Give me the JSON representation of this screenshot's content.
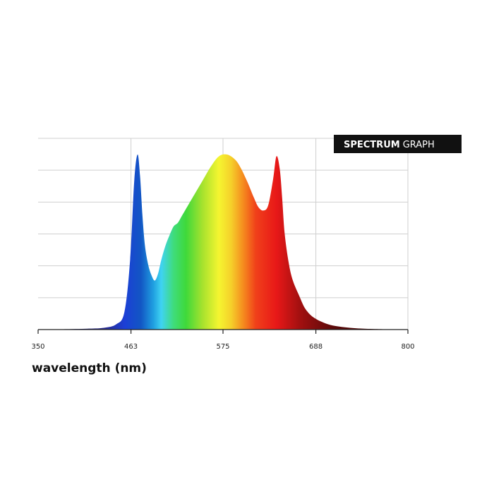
{
  "chart_data": {
    "type": "area",
    "title_bold": "SPECTRUM",
    "title_rest": "GRAPH",
    "xlabel": "wavelength (nm)",
    "ylabel": "",
    "xlim": [
      350,
      800
    ],
    "ylim": [
      0,
      100
    ],
    "x_ticks": [
      350,
      463,
      575,
      688,
      800
    ],
    "x_tick_labels": [
      "350",
      "463",
      "575",
      "688",
      "800"
    ],
    "grid": true,
    "series": [
      {
        "x": [
          350,
          380,
          410,
          430,
          445,
          455,
          462,
          467,
          471,
          474,
          477,
          480,
          484,
          488,
          492,
          496,
          500,
          505,
          510,
          515,
          520,
          525,
          530,
          540,
          550,
          560,
          570,
          580,
          590,
          597,
          605,
          612,
          618,
          624,
          630,
          636,
          640,
          644,
          647,
          650,
          655,
          660,
          668,
          675,
          685,
          700,
          715,
          735,
          760,
          800
        ],
        "y": [
          0,
          0.2,
          0.5,
          1,
          3,
          10,
          40,
          85,
          100,
          88,
          65,
          48,
          37,
          31,
          28,
          32,
          40,
          48,
          54,
          59,
          61,
          65,
          69,
          77,
          85,
          93,
          99,
          100,
          97,
          92,
          84,
          76,
          70,
          68,
          71,
          86,
          99,
          92,
          75,
          55,
          38,
          28,
          19,
          12,
          7,
          3.5,
          1.8,
          0.8,
          0.3,
          0
        ]
      }
    ],
    "gradient_colors": [
      {
        "nm": 350,
        "color": "#3a3a55"
      },
      {
        "nm": 430,
        "color": "#2a2a8a"
      },
      {
        "nm": 455,
        "color": "#1c3fd6"
      },
      {
        "nm": 475,
        "color": "#1256c4"
      },
      {
        "nm": 490,
        "color": "#1f9ee0"
      },
      {
        "nm": 500,
        "color": "#3fd3f2"
      },
      {
        "nm": 515,
        "color": "#3fdc7a"
      },
      {
        "nm": 530,
        "color": "#3fd93a"
      },
      {
        "nm": 550,
        "color": "#a6e22e"
      },
      {
        "nm": 570,
        "color": "#f5f530"
      },
      {
        "nm": 585,
        "color": "#f5d02a"
      },
      {
        "nm": 600,
        "color": "#f58a1e"
      },
      {
        "nm": 615,
        "color": "#f0401a"
      },
      {
        "nm": 640,
        "color": "#e81818"
      },
      {
        "nm": 668,
        "color": "#a31010"
      },
      {
        "nm": 710,
        "color": "#5a0a0a"
      },
      {
        "nm": 800,
        "color": "#3a0606"
      }
    ]
  }
}
